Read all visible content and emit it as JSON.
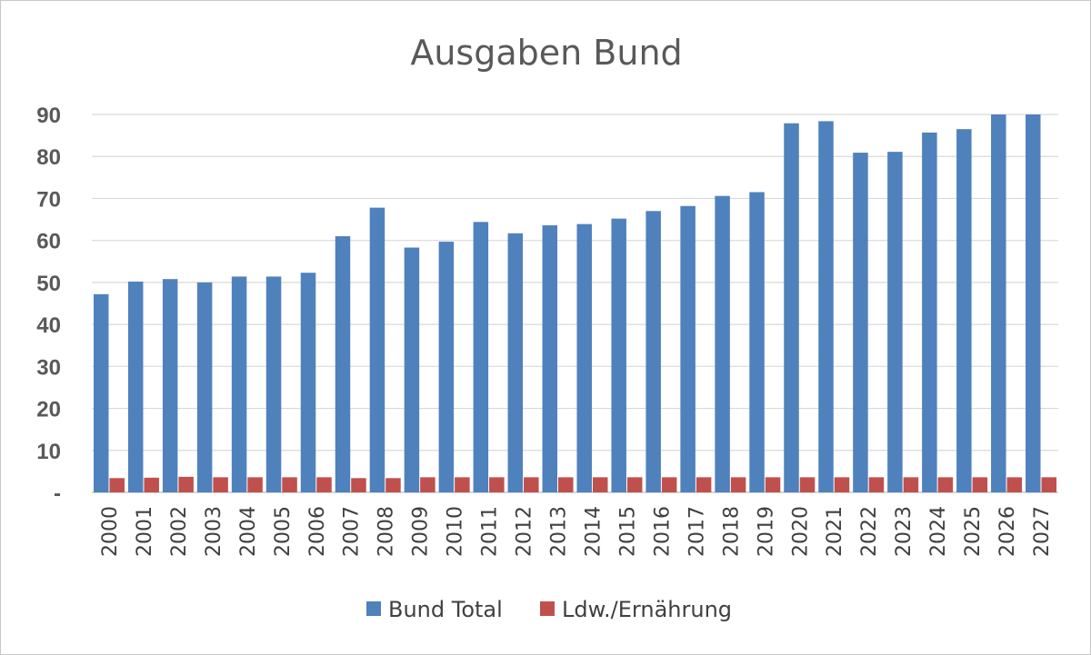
{
  "chart_data": {
    "type": "bar",
    "title": "Ausgaben Bund",
    "categories": [
      "2000",
      "2001",
      "2002",
      "2003",
      "2004",
      "2005",
      "2006",
      "2007",
      "2008",
      "2009",
      "2010",
      "2011",
      "2012",
      "2013",
      "2014",
      "2015",
      "2016",
      "2017",
      "2018",
      "2019",
      "2020",
      "2021",
      "2022",
      "2023",
      "2024",
      "2025",
      "2026",
      "2027"
    ],
    "series": [
      {
        "name": "Bund Total",
        "color": "#4f81bd",
        "values": [
          47.2,
          50.2,
          50.8,
          50.0,
          51.4,
          51.4,
          52.3,
          61.0,
          67.8,
          58.3,
          59.7,
          64.4,
          61.7,
          63.6,
          63.9,
          65.2,
          67.0,
          68.2,
          70.6,
          71.5,
          87.9,
          88.4,
          80.9,
          81.1,
          85.7,
          86.5,
          90.0,
          90.0
        ]
      },
      {
        "name": "Ldw./Ernährung",
        "color": "#c0504d",
        "values": [
          3.4,
          3.5,
          3.7,
          3.6,
          3.6,
          3.6,
          3.6,
          3.4,
          3.4,
          3.6,
          3.6,
          3.6,
          3.6,
          3.6,
          3.6,
          3.6,
          3.6,
          3.6,
          3.6,
          3.6,
          3.6,
          3.6,
          3.6,
          3.6,
          3.6,
          3.6,
          3.6,
          3.6
        ]
      }
    ],
    "ylim": [
      0,
      90
    ],
    "yticks": [
      0,
      10,
      20,
      30,
      40,
      50,
      60,
      70,
      80,
      90
    ],
    "ytick_labels": [
      "-",
      "10",
      "20",
      "30",
      "40",
      "50",
      "60",
      "70",
      "80",
      "90"
    ],
    "grid": true,
    "legend_position": "bottom"
  }
}
